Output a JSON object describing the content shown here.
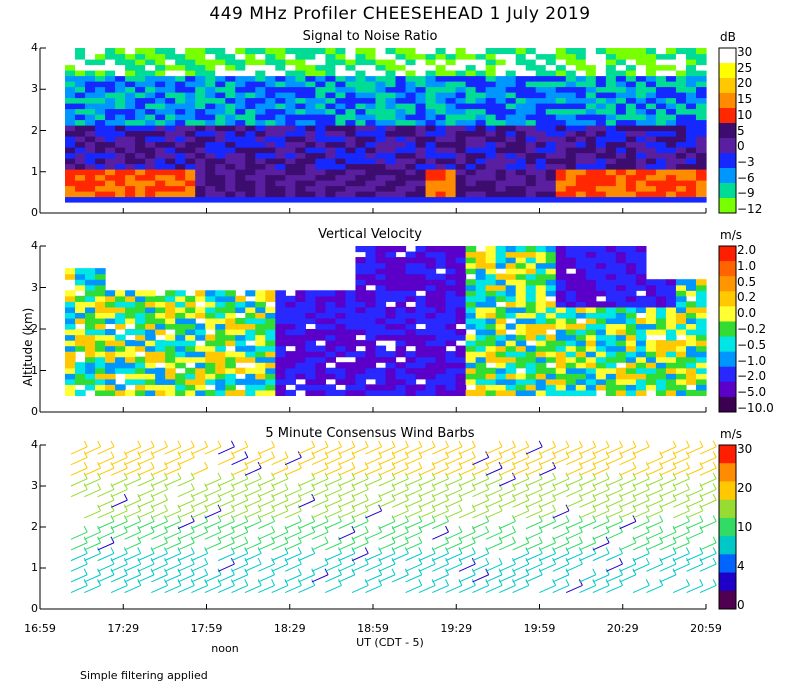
{
  "title": "449 MHz Profiler CHEESEHEAD  1 July 2019",
  "footnote": "Simple filtering applied",
  "noon_label": "noon",
  "chart_data": [
    {
      "type": "heatmap",
      "title": "Signal to Noise Ratio",
      "ylabel": "Altitude (km)",
      "xlabel": "UT  (CDT - 5)",
      "y_ticks": [
        "0",
        "1",
        "2",
        "3",
        "4"
      ],
      "x_ticks": [
        "16:59",
        "17:29",
        "17:59",
        "18:29",
        "18:59",
        "19:29",
        "19:59",
        "20:29",
        "20:59"
      ],
      "ylim": [
        0,
        4
      ],
      "colorbar": {
        "unit": "dB",
        "labels": [
          "30",
          "25",
          "20",
          "15",
          "10",
          "5",
          "0",
          "−3",
          "−6",
          "−9",
          "−12"
        ],
        "colors": [
          "#ffffff",
          "#ffff00",
          "#ffc800",
          "#ff8c00",
          "#ff2800",
          "#3c0d6e",
          "#5a1ea0",
          "#1428ff",
          "#0096ff",
          "#00dc96",
          "#78ff00"
        ]
      }
    },
    {
      "type": "heatmap",
      "title": "Vertical Velocity",
      "ylabel": "Altitude (km)",
      "xlabel": "UT  (CDT - 5)",
      "y_ticks": [
        "0",
        "1",
        "2",
        "3",
        "4"
      ],
      "x_ticks": [
        "16:59",
        "17:29",
        "17:59",
        "18:29",
        "18:59",
        "19:29",
        "19:59",
        "20:29",
        "20:59"
      ],
      "ylim": [
        0,
        4
      ],
      "colorbar": {
        "unit": "m/s",
        "labels": [
          "2.0",
          "1.0",
          "0.5",
          "0.2",
          "0.0",
          "−0.2",
          "−0.5",
          "−1.0",
          "−2.0",
          "−5.0",
          "−10.0"
        ],
        "colors": [
          "#ff1e00",
          "#ff6400",
          "#ff9600",
          "#ffc800",
          "#ffff32",
          "#32dc32",
          "#00e6e6",
          "#0096ff",
          "#2828ff",
          "#5a00c8",
          "#3c0050"
        ]
      }
    },
    {
      "type": "scatter",
      "title": "5 Minute Consensus Wind Barbs",
      "ylabel": "Altitude (km)",
      "xlabel": "UT  (CDT - 5)",
      "y_ticks": [
        "0",
        "1",
        "2",
        "3",
        "4"
      ],
      "x_ticks": [
        "16:59",
        "17:29",
        "17:59",
        "18:29",
        "18:59",
        "19:29",
        "19:59",
        "20:29",
        "20:59"
      ],
      "ylim": [
        0,
        4
      ],
      "colorbar": {
        "unit": "m/s",
        "labels": [
          "30",
          "20",
          "10",
          "4",
          "0"
        ],
        "colors": [
          "#ff1e00",
          "#ff8c00",
          "#ffc800",
          "#96dc32",
          "#32dc64",
          "#00c8c8",
          "#0064ff",
          "#1e00c8",
          "#500050"
        ]
      }
    }
  ]
}
